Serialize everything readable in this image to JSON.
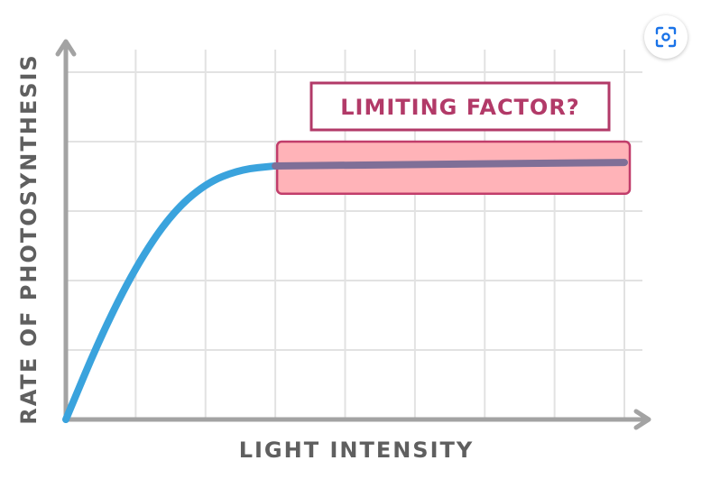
{
  "chart_data": {
    "type": "line",
    "xlabel": "LIGHT INTENSITY",
    "ylabel": "RATE OF PHOTOSYNTHESIS",
    "xlim": [
      0,
      8
    ],
    "ylim": [
      0,
      5
    ],
    "grid": true,
    "series": [
      {
        "color": "#3aa3dd",
        "points": [
          [
            0,
            0
          ],
          [
            0.5,
            1.2
          ],
          [
            1.0,
            2.2
          ],
          [
            1.5,
            2.95
          ],
          [
            2.0,
            3.4
          ],
          [
            2.5,
            3.6
          ],
          [
            3.0,
            3.65
          ]
        ]
      },
      {
        "color": "#7f6f97",
        "points": [
          [
            3.0,
            3.65
          ],
          [
            8.0,
            3.7
          ]
        ]
      }
    ],
    "annotation": {
      "text": "LIMITING FACTOR?",
      "highlight": {
        "x": [
          3.0,
          8.0
        ],
        "y": [
          3.25,
          4.0
        ],
        "fill": "#ffb3b8",
        "stroke": "#c13d6b"
      }
    }
  },
  "toolbar": {
    "lens_icon": "lens-scan-icon",
    "accent": "#1a73e8"
  }
}
